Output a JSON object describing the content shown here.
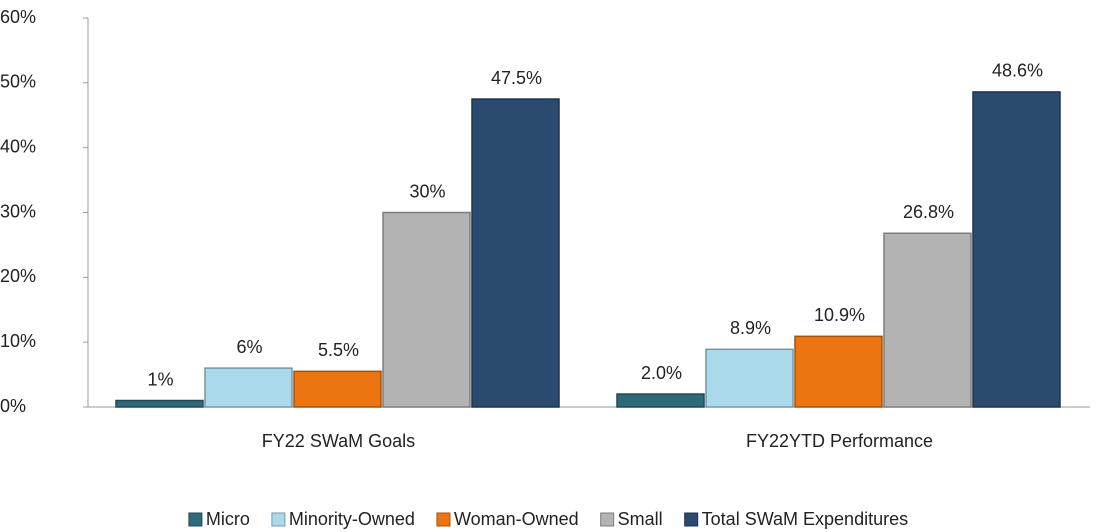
{
  "chart_data": {
    "type": "bar",
    "categories": [
      "FY22 SWaM Goals",
      "FY22YTD Performance"
    ],
    "series": [
      {
        "name": "Micro",
        "color": "#2f6a7a",
        "values": [
          1,
          2.0
        ],
        "value_labels": [
          "1%",
          "2.0%"
        ]
      },
      {
        "name": "Minority-Owned",
        "color": "#a9d9ea",
        "values": [
          6,
          8.9
        ],
        "value_labels": [
          "6%",
          "8.9%"
        ]
      },
      {
        "name": "Woman-Owned",
        "color": "#ec7512",
        "values": [
          5.5,
          10.9
        ],
        "value_labels": [
          "5.5%",
          "10.9%"
        ]
      },
      {
        "name": "Small",
        "color": "#b3b3b3",
        "values": [
          30,
          26.8
        ],
        "value_labels": [
          "30%",
          "26.8%"
        ]
      },
      {
        "name": "Total SWaM Expenditures",
        "color": "#2b4a6f",
        "values": [
          47.5,
          48.6
        ],
        "value_labels": [
          "47.5%",
          "48.6%"
        ]
      }
    ],
    "ylim": [
      0,
      60
    ],
    "yticks": [
      {
        "value": 0,
        "label": "0%"
      },
      {
        "value": 10,
        "label": "10%"
      },
      {
        "value": 20,
        "label": "20%"
      },
      {
        "value": 30,
        "label": "30%"
      },
      {
        "value": 40,
        "label": "40%"
      },
      {
        "value": 50,
        "label": "50%"
      },
      {
        "value": 60,
        "label": "60%"
      }
    ],
    "legend": "bottom"
  }
}
